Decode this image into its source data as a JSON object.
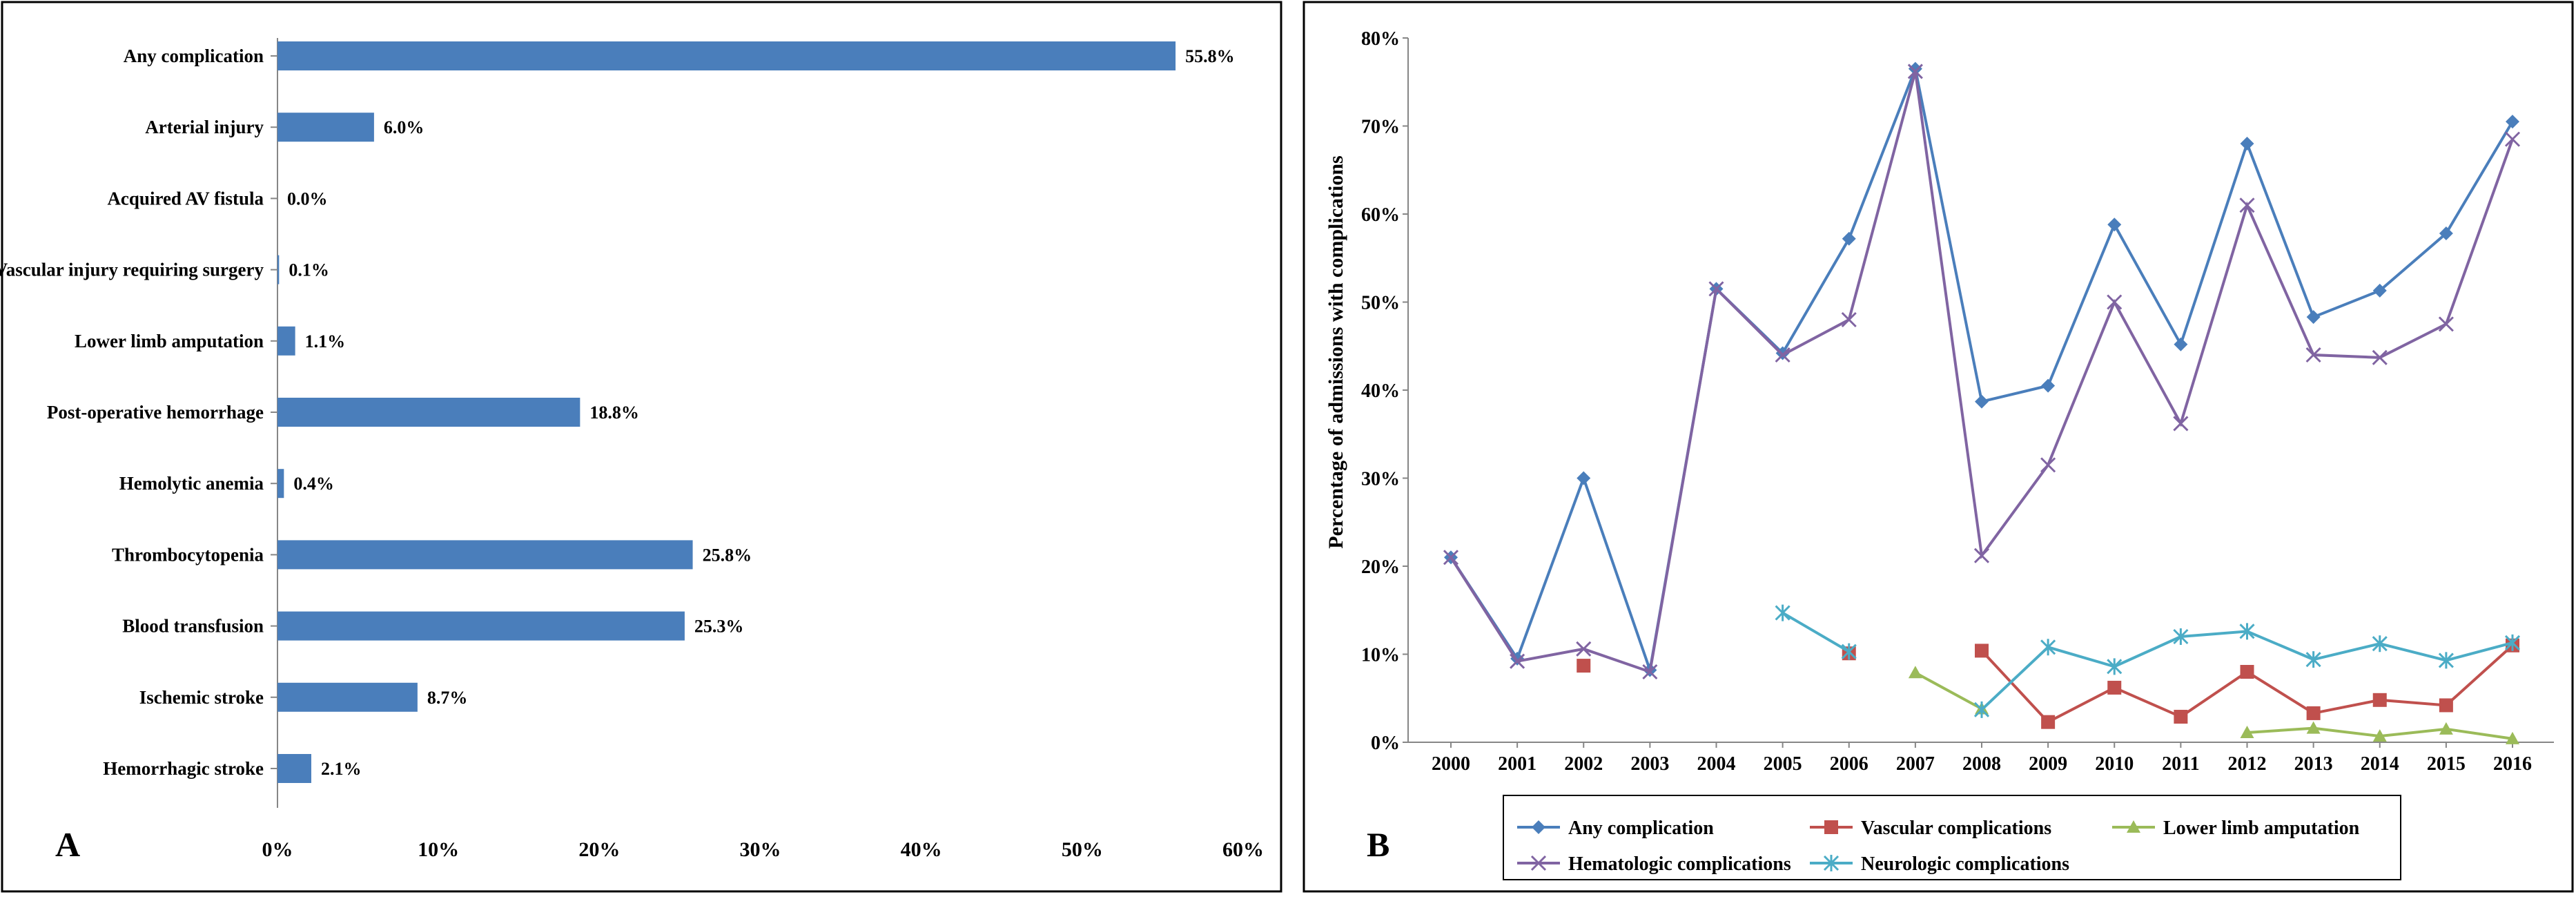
{
  "panel_a_letter": "A",
  "panel_b_letter": "B",
  "colors": {
    "bar": "#4a7ebb",
    "any": "#4a7ebb",
    "vascular": "#c0504d",
    "amputation": "#9bbb59",
    "hematologic": "#8064a2",
    "neurologic": "#4bacc6",
    "axis": "#868686",
    "frame": "#000000"
  },
  "chart_data": [
    {
      "type": "bar",
      "orientation": "horizontal",
      "panel": "A",
      "title": "",
      "xlabel": "",
      "ylabel": "",
      "xlim": [
        0,
        60
      ],
      "xticks": [
        0,
        10,
        20,
        30,
        40,
        50,
        60
      ],
      "xtick_labels": [
        "0%",
        "10%",
        "20%",
        "30%",
        "40%",
        "50%",
        "60%"
      ],
      "categories": [
        "Any complication",
        "Arterial injury",
        "Acquired AV fistula",
        "Vascular injury requiring surgery",
        "Lower limb amputation",
        "Post-operative hemorrhage",
        "Hemolytic anemia",
        "Thrombocytopenia",
        "Blood transfusion",
        "Ischemic stroke",
        "Hemorrhagic stroke"
      ],
      "values": [
        55.8,
        6.0,
        0.0,
        0.1,
        1.1,
        18.8,
        0.4,
        25.8,
        25.3,
        8.7,
        2.1
      ],
      "data_labels": [
        "55.8%",
        "6.0%",
        "0.0%",
        "0.1%",
        "1.1%",
        "18.8%",
        "0.4%",
        "25.8%",
        "25.3%",
        "8.7%",
        "2.1%"
      ]
    },
    {
      "type": "line",
      "panel": "B",
      "title": "",
      "xlabel": "",
      "ylabel": "Percentage of admissions with complications",
      "ylim": [
        0,
        80
      ],
      "yticks": [
        0,
        10,
        20,
        30,
        40,
        50,
        60,
        70,
        80
      ],
      "ytick_labels": [
        "0%",
        "10%",
        "20%",
        "30%",
        "40%",
        "50%",
        "60%",
        "70%",
        "80%"
      ],
      "x": [
        "2000",
        "2001",
        "2002",
        "2003",
        "2004",
        "2005",
        "2006",
        "2007",
        "2008",
        "2009",
        "2010",
        "2011",
        "2012",
        "2013",
        "2014",
        "2015",
        "2016"
      ],
      "legend_position": "bottom",
      "series": [
        {
          "name": "Any complication",
          "marker": "diamond",
          "color_key": "any",
          "values": [
            21,
            9.5,
            30,
            8.2,
            51.5,
            44.2,
            57.2,
            76.5,
            38.7,
            40.5,
            58.8,
            45.2,
            68,
            48.3,
            51.3,
            57.8,
            70.5
          ]
        },
        {
          "name": "Vascular complications",
          "marker": "square",
          "color_key": "vascular",
          "values": [
            null,
            null,
            8.7,
            null,
            null,
            null,
            10.1,
            null,
            10.4,
            2.3,
            6.2,
            2.9,
            8.0,
            3.3,
            4.8,
            4.2,
            11.0
          ]
        },
        {
          "name": "Lower limb amputation",
          "marker": "triangle",
          "color_key": "amputation",
          "values": [
            null,
            null,
            null,
            null,
            null,
            null,
            null,
            7.9,
            3.8,
            null,
            null,
            null,
            1.1,
            1.6,
            0.7,
            1.5,
            0.4
          ]
        },
        {
          "name": "Hematologic complications",
          "marker": "x",
          "color_key": "hematologic",
          "values": [
            21,
            9.2,
            10.6,
            8.0,
            51.5,
            44.0,
            48.0,
            76.2,
            21.2,
            31.5,
            50.0,
            36.2,
            61.0,
            44.0,
            43.7,
            47.5,
            68.5
          ]
        },
        {
          "name": "Neurologic complications",
          "marker": "star",
          "color_key": "neurologic",
          "values": [
            null,
            null,
            null,
            null,
            null,
            14.7,
            10.3,
            null,
            3.7,
            10.8,
            8.6,
            12.0,
            12.6,
            9.4,
            11.2,
            9.3,
            11.3
          ]
        }
      ]
    }
  ]
}
